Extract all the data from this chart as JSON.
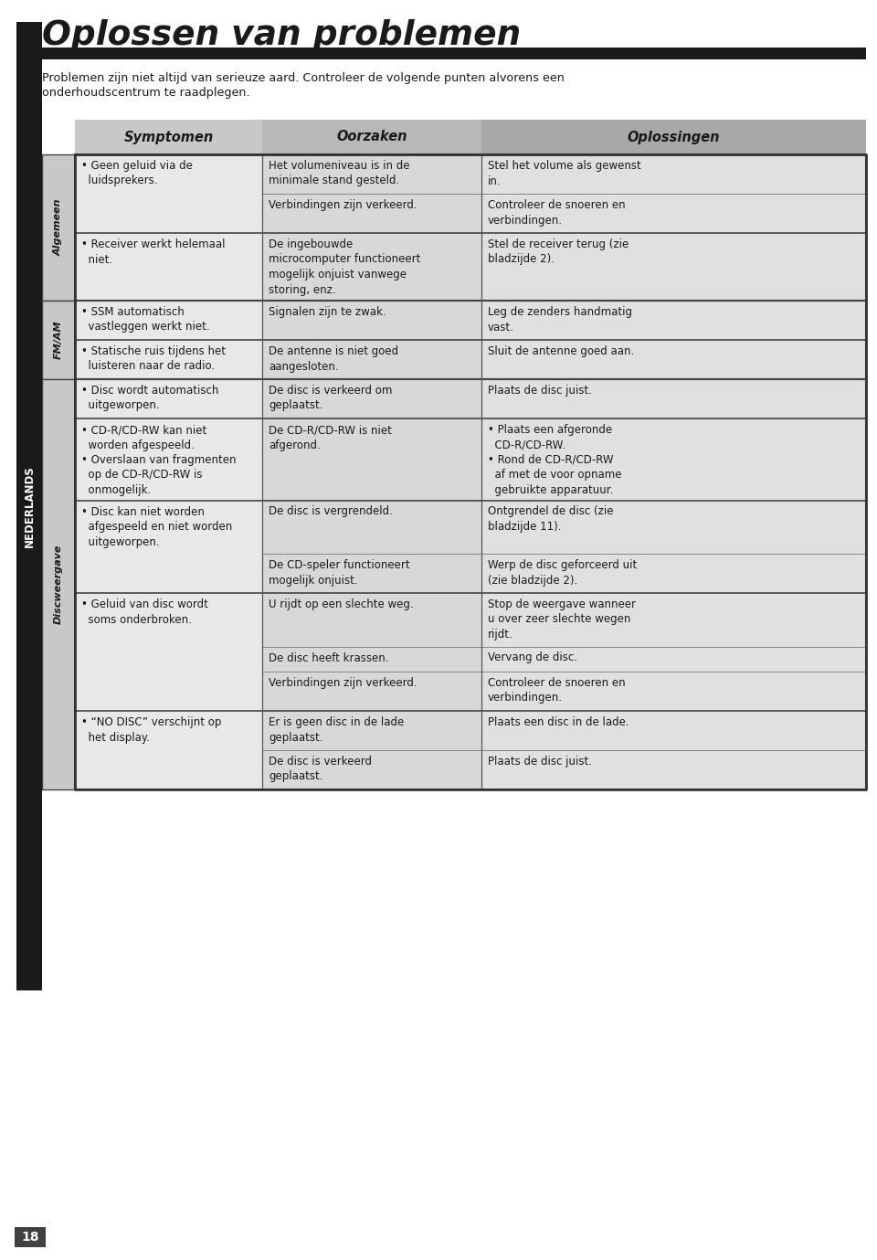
{
  "title": "Oplossen van problemen",
  "col_headers": [
    "Symptomen",
    "Oorzaken",
    "Oplossingen"
  ],
  "rows": [
    {
      "symptoom": "• Geen geluid via de\n  luidsprekers.",
      "oorzaak": "Het volumeniveau is in de\nminimale stand gesteld.",
      "oplossing": "Stel het volume als gewenst\nin.",
      "sym_rows": 2,
      "ooz_rows": 2,
      "opl_rows": 2,
      "group_start": true,
      "group_end": false,
      "section": 0
    },
    {
      "symptoom": "",
      "oorzaak": "Verbindingen zijn verkeerd.",
      "oplossing": "Controleer de snoeren en\nverbindingen.",
      "sym_rows": 0,
      "ooz_rows": 1,
      "opl_rows": 2,
      "group_start": false,
      "group_end": true,
      "section": 0
    },
    {
      "symptoom": "• Receiver werkt helemaal\n  niet.",
      "oorzaak": "De ingebouwde\nmicrocomputer functioneert\nmogelijk onjuist vanwege\nstoring, enz.",
      "oplossing": "Stel de receiver terug (zie\nbladzijde 2).",
      "sym_rows": 2,
      "ooz_rows": 4,
      "opl_rows": 2,
      "group_start": true,
      "group_end": true,
      "section": 0
    },
    {
      "symptoom": "• SSM automatisch\n  vastleggen werkt niet.",
      "oorzaak": "Signalen zijn te zwak.",
      "oplossing": "Leg de zenders handmatig\nvast.",
      "sym_rows": 2,
      "ooz_rows": 1,
      "opl_rows": 2,
      "group_start": true,
      "group_end": true,
      "section": 1
    },
    {
      "symptoom": "• Statische ruis tijdens het\n  luisteren naar de radio.",
      "oorzaak": "De antenne is niet goed\naangesloten.",
      "oplossing": "Sluit de antenne goed aan.",
      "sym_rows": 2,
      "ooz_rows": 2,
      "opl_rows": 1,
      "group_start": true,
      "group_end": true,
      "section": 1
    },
    {
      "symptoom": "• Disc wordt automatisch\n  uitgeworpen.",
      "oorzaak": "De disc is verkeerd om\ngeplaatst.",
      "oplossing": "Plaats de disc juist.",
      "sym_rows": 2,
      "ooz_rows": 2,
      "opl_rows": 1,
      "group_start": true,
      "group_end": true,
      "section": 2
    },
    {
      "symptoom": "• CD-R/CD-RW kan niet\n  worden afgespeeld.\n• Overslaan van fragmenten\n  op de CD-R/CD-RW is\n  onmogelijk.",
      "oorzaak": "De CD-R/CD-RW is niet\nafgerond.",
      "oplossing": "• Plaats een afgeronde\n  CD-R/CD-RW.\n• Rond de CD-R/CD-RW\n  af met de voor opname\n  gebruikte apparatuur.",
      "sym_rows": 5,
      "ooz_rows": 2,
      "opl_rows": 5,
      "group_start": true,
      "group_end": true,
      "section": 2
    },
    {
      "symptoom": "• Disc kan niet worden\n  afgespeeld en niet worden\n  uitgeworpen.",
      "oorzaak": "De disc is vergrendeld.",
      "oplossing": "Ontgrendel de disc (zie\nbladzijde 11).",
      "sym_rows": 3,
      "ooz_rows": 1,
      "opl_rows": 2,
      "group_start": true,
      "group_end": false,
      "section": 2
    },
    {
      "symptoom": "",
      "oorzaak": "De CD-speler functioneert\nmogelijk onjuist.",
      "oplossing": "Werp de disc geforceerd uit\n(zie bladzijde 2).",
      "sym_rows": 0,
      "ooz_rows": 2,
      "opl_rows": 2,
      "group_start": false,
      "group_end": true,
      "section": 2
    },
    {
      "symptoom": "• Geluid van disc wordt\n  soms onderbroken.",
      "oorzaak": "U rijdt op een slechte weg.",
      "oplossing": "Stop de weergave wanneer\nu over zeer slechte wegen\nrijdt.",
      "sym_rows": 2,
      "ooz_rows": 1,
      "opl_rows": 3,
      "group_start": true,
      "group_end": false,
      "section": 2
    },
    {
      "symptoom": "",
      "oorzaak": "De disc heeft krassen.",
      "oplossing": "Vervang de disc.",
      "sym_rows": 0,
      "ooz_rows": 1,
      "opl_rows": 1,
      "group_start": false,
      "group_end": false,
      "section": 2
    },
    {
      "symptoom": "",
      "oorzaak": "Verbindingen zijn verkeerd.",
      "oplossing": "Controleer de snoeren en\nverbindingen.",
      "sym_rows": 0,
      "ooz_rows": 1,
      "opl_rows": 2,
      "group_start": false,
      "group_end": true,
      "section": 2
    },
    {
      "symptoom": "• “NO DISC” verschijnt op\n  het display.",
      "oorzaak": "Er is geen disc in de lade\ngeplaatst.",
      "oplossing": "Plaats een disc in de lade.",
      "sym_rows": 2,
      "ooz_rows": 2,
      "opl_rows": 1,
      "group_start": true,
      "group_end": false,
      "section": 2
    },
    {
      "symptoom": "",
      "oorzaak": "De disc is verkeerd\ngeplaatst.",
      "oplossing": "Plaats de disc juist.",
      "sym_rows": 0,
      "ooz_rows": 2,
      "opl_rows": 1,
      "group_start": false,
      "group_end": true,
      "section": 2
    }
  ],
  "bg_color": "#ffffff",
  "header_bg_sym": "#c8c8c8",
  "header_bg_ooz": "#b8b8b8",
  "header_bg_opl": "#a8a8a8",
  "cell_bg_sym": "#e8e8e8",
  "cell_bg_ooz": "#d8d8d8",
  "cell_bg_opl": "#e0e0e0",
  "side_bg": "#c8c8c8",
  "text_color": "#1a1a1a",
  "page_number": "18"
}
